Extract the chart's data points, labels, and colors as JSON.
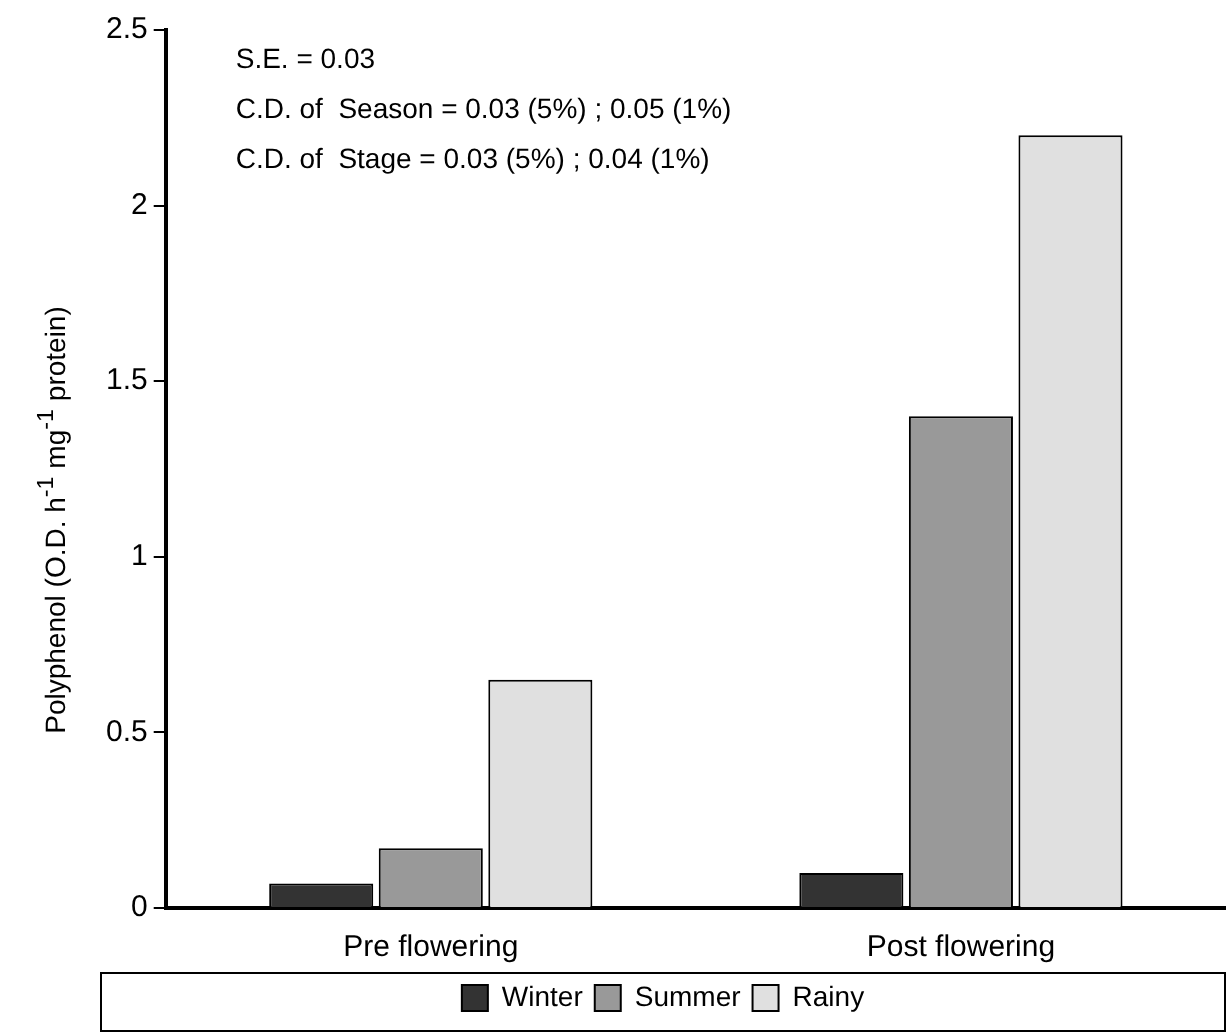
{
  "chart_data": {
    "type": "bar",
    "ylabel": "Polyphenol (O.D. h$^{-1}$ mg$^{-1}$ protein)",
    "categories": [
      "Pre flowering",
      "Post flowering"
    ],
    "series": [
      {
        "name": "Winter",
        "color": "#333333",
        "values": [
          0.07,
          0.1
        ]
      },
      {
        "name": "Summer",
        "color": "#999999",
        "values": [
          0.17,
          1.4
        ]
      },
      {
        "name": "Rainy",
        "color": "#e0e0e0",
        "values": [
          0.65,
          2.2
        ]
      }
    ],
    "ylim": [
      0,
      2.5
    ],
    "yticks": [
      0,
      0.5,
      1,
      1.5,
      2,
      2.5
    ],
    "grid": false,
    "legend": "bottom",
    "annotations": [
      "S.E. = 0.03",
      "C.D. of  Season = 0.03 (5%) ; 0.05 (1%)",
      "C.D. of  Stage = 0.03 (5%) ; 0.04 (1%)"
    ]
  }
}
